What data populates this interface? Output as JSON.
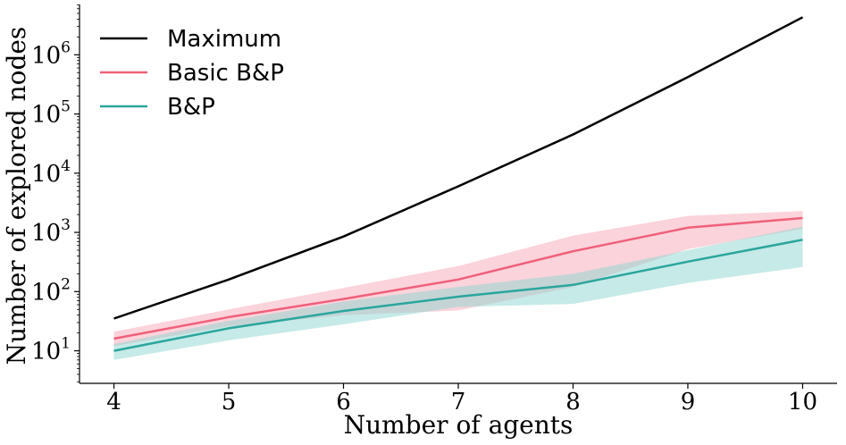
{
  "chart_data": {
    "type": "line",
    "xlabel": "Number of agents",
    "ylabel": "Number of explored nodes",
    "xlim": [
      3.7,
      10.3
    ],
    "ylim_log10": [
      0.45,
      6.85
    ],
    "yscale": "log",
    "x": [
      4,
      5,
      6,
      7,
      8,
      9,
      10
    ],
    "x_tick_labels": [
      "4",
      "5",
      "6",
      "7",
      "8",
      "9",
      "10"
    ],
    "y_ticks": [
      {
        "exp": 1,
        "base": "10",
        "sup": "1"
      },
      {
        "exp": 2,
        "base": "10",
        "sup": "2"
      },
      {
        "exp": 3,
        "base": "10",
        "sup": "3"
      },
      {
        "exp": 4,
        "base": "10",
        "sup": "4"
      },
      {
        "exp": 5,
        "base": "10",
        "sup": "5"
      },
      {
        "exp": 6,
        "base": "10",
        "sup": "6"
      }
    ],
    "grid": false,
    "legend_position": "top-left",
    "series": [
      {
        "name": "Maximum",
        "color": "#000000",
        "values": [
          35,
          160,
          850,
          6000,
          45000,
          420000,
          4300000
        ]
      },
      {
        "name": "Basic B&P",
        "color": "#f0607a",
        "band_color": "#f7a8b8",
        "values": [
          16,
          37,
          75,
          160,
          480,
          1200,
          1750
        ],
        "lower": [
          12,
          26,
          40,
          48,
          120,
          520,
          1150
        ],
        "upper": [
          21,
          50,
          115,
          270,
          880,
          1900,
          2300
        ]
      },
      {
        "name": "B&P",
        "color": "#2aa69c",
        "band_color": "#8ed6d0",
        "values": [
          10,
          24,
          47,
          82,
          130,
          320,
          750
        ],
        "lower": [
          7,
          15,
          28,
          55,
          62,
          140,
          260
        ],
        "upper": [
          13,
          32,
          68,
          120,
          200,
          500,
          1250
        ]
      }
    ]
  }
}
